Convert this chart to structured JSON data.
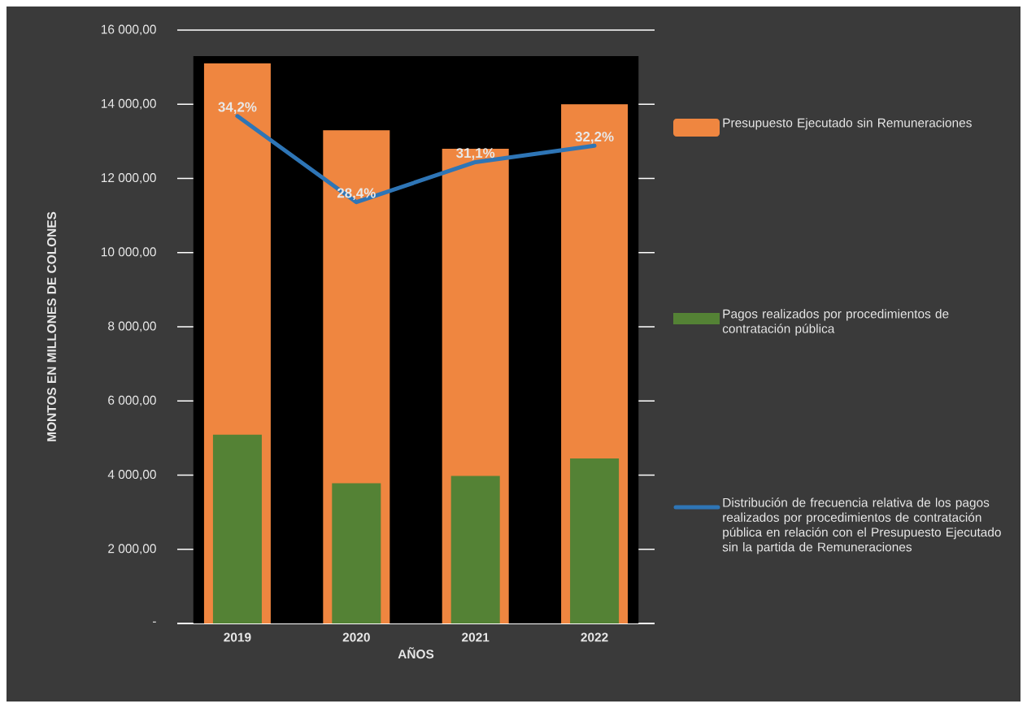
{
  "chart_data": {
    "type": "bar",
    "xlabel": "AÑOS",
    "ylabel": "MONTOS EN MILLONES DE COLONES",
    "categories": [
      "2019",
      "2020",
      "2021",
      "2022"
    ],
    "series": [
      {
        "name": "Presupuesto Ejecutado sin Remuneraciones",
        "color": "#ef8640",
        "values": [
          15100,
          13300,
          12800,
          14000
        ]
      },
      {
        "name": "Pagos realizados por procedimientos de contratación pública",
        "color": "#548235",
        "values": [
          5090,
          3780,
          3980,
          4450
        ]
      },
      {
        "name": "Distribución de frecuencia relativa de los pagos realizados por procedimientos de contratación pública en relación con el Presupuesto Ejecutado sin la partida de Remuneraciones",
        "type": "line",
        "axis": "y2",
        "color": "#2e75b6",
        "values": [
          34.2,
          28.4,
          31.1,
          32.2
        ],
        "value_labels": [
          "34,2%",
          "28,4%",
          "31,1%",
          "32,2%"
        ]
      }
    ],
    "ylim": [
      0,
      16000
    ],
    "yticks": [
      {
        "value": 0,
        "label": "-"
      },
      {
        "value": 2000,
        "label": "2 000,00"
      },
      {
        "value": 4000,
        "label": "4 000,00"
      },
      {
        "value": 6000,
        "label": "6 000,00"
      },
      {
        "value": 8000,
        "label": "8 000,00"
      },
      {
        "value": 10000,
        "label": "10 000,00"
      },
      {
        "value": 12000,
        "label": "12 000,00"
      },
      {
        "value": 14000,
        "label": "14 000,00"
      },
      {
        "value": 16000,
        "label": "16 000,00"
      }
    ],
    "y2lim": [
      0,
      40
    ],
    "grid": "y",
    "legend": "right"
  }
}
